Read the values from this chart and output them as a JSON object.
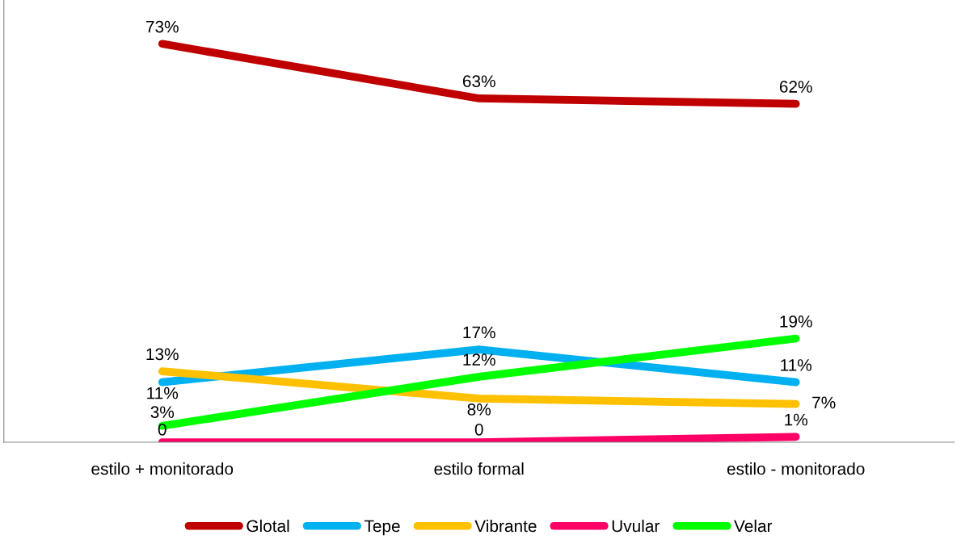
{
  "chart_data": {
    "type": "line",
    "categories": [
      "estilo + monitorado",
      "estilo formal",
      "estilo - monitorado"
    ],
    "series": [
      {
        "name": "Glotal",
        "color": "#c00000",
        "values": [
          73,
          63,
          62
        ],
        "value_labels": [
          "73%",
          "63%",
          "62%"
        ]
      },
      {
        "name": "Tepe",
        "color": "#00b0f0",
        "values": [
          11,
          17,
          11
        ],
        "value_labels": [
          "11%",
          "17%",
          "11%"
        ]
      },
      {
        "name": "Vibrante",
        "color": "#ffc000",
        "values": [
          13,
          8,
          7
        ],
        "value_labels": [
          "13%",
          "8%",
          "7%"
        ]
      },
      {
        "name": "Uvular",
        "color": "#ff0066",
        "values": [
          0,
          0,
          1
        ],
        "value_labels": [
          "0",
          "0",
          "1%"
        ]
      },
      {
        "name": "Velar",
        "color": "#00ff00",
        "values": [
          3,
          12,
          19
        ],
        "value_labels": [
          "3%",
          "12%",
          "19%"
        ]
      }
    ],
    "legend": "bottom",
    "marker": "none",
    "line_style": "solid",
    "tick_labels": "x",
    "grid": false
  }
}
